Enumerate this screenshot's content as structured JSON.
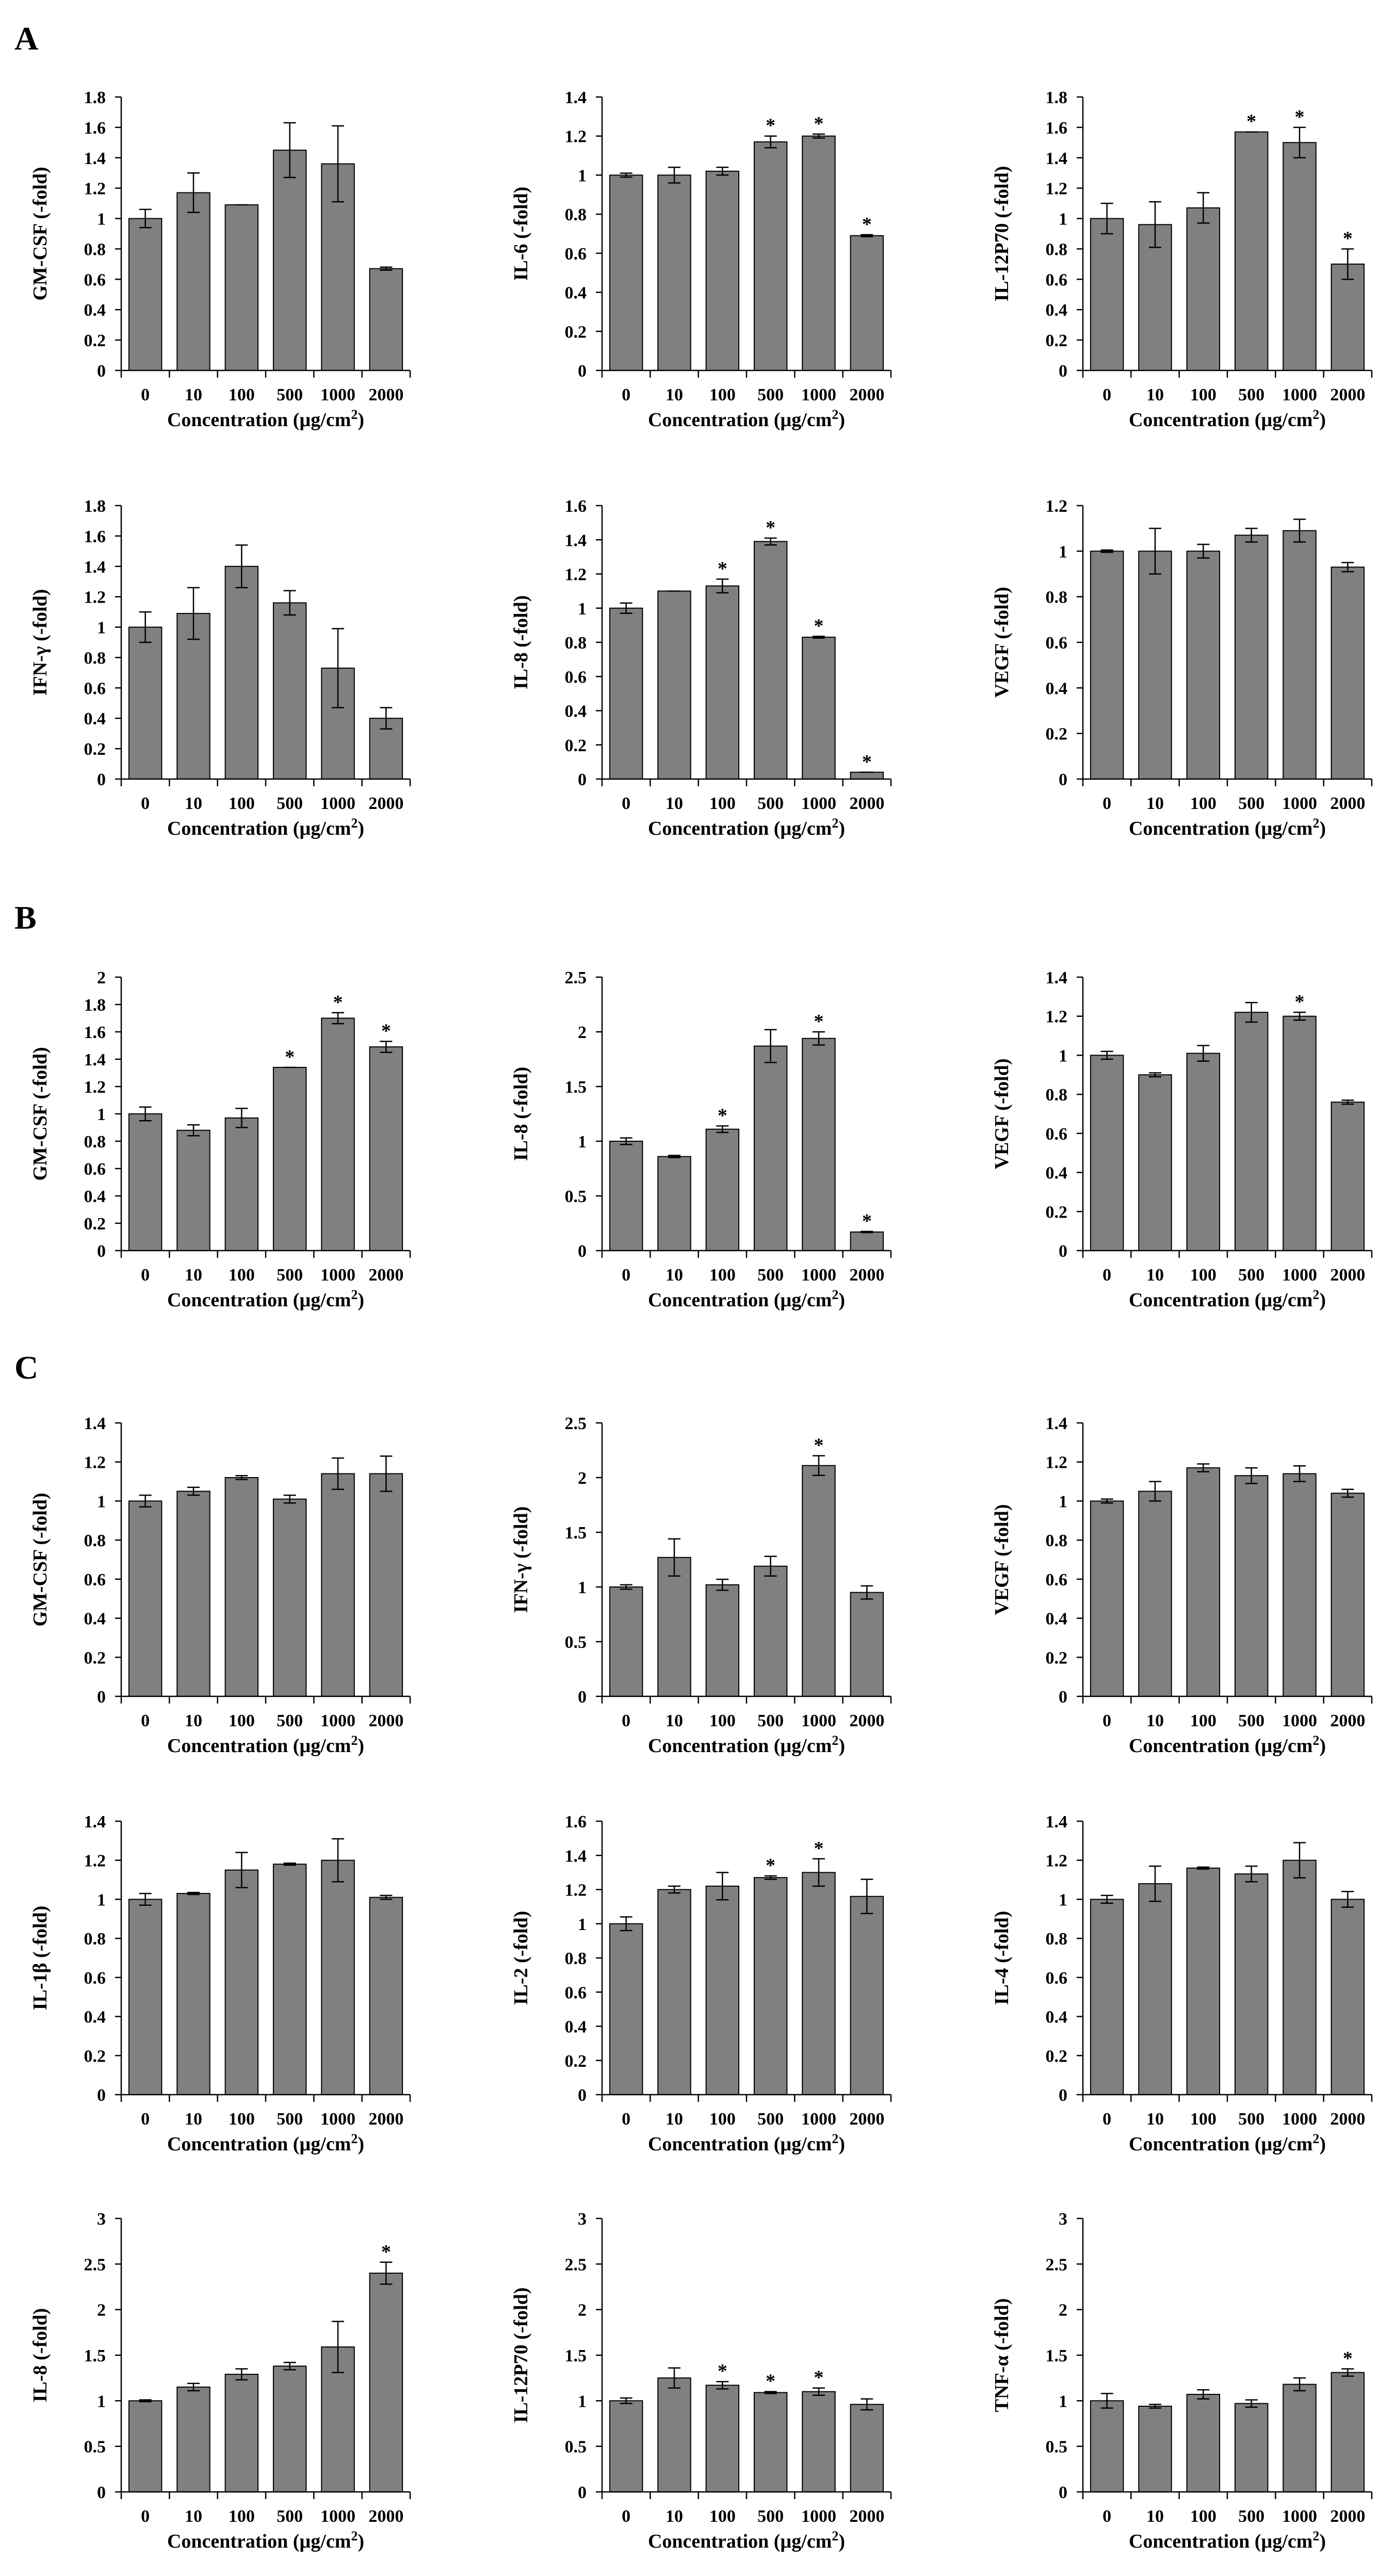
{
  "panels": [
    {
      "letter": "A"
    },
    {
      "letter": "B"
    },
    {
      "letter": "C"
    }
  ],
  "xlabel_text": "Concentration (µg/cm",
  "xlabel_sup": "2",
  "xlabel_close": ")",
  "chart_data": [
    {
      "type": "bar",
      "panel": "A",
      "ylabel": "GM-CSF (-fold)",
      "categories": [
        "0",
        "10",
        "100",
        "500",
        "1000",
        "2000"
      ],
      "ylim": [
        0,
        1.8
      ],
      "step": 0.2,
      "values": [
        1.0,
        1.17,
        1.09,
        1.45,
        1.36,
        0.67
      ],
      "errors": [
        0.06,
        0.13,
        0,
        0.18,
        0.25,
        0.01
      ],
      "significant": [
        false,
        false,
        false,
        false,
        false,
        false
      ]
    },
    {
      "type": "bar",
      "panel": "A",
      "ylabel": "IL-6 (-fold)",
      "categories": [
        "0",
        "10",
        "100",
        "500",
        "1000",
        "2000"
      ],
      "ylim": [
        0,
        1.4
      ],
      "step": 0.2,
      "values": [
        1.0,
        1.0,
        1.02,
        1.17,
        1.2,
        0.69
      ],
      "errors": [
        0.01,
        0.04,
        0.02,
        0.03,
        0.01,
        0.005
      ],
      "significant": [
        false,
        false,
        false,
        true,
        true,
        true
      ]
    },
    {
      "type": "bar",
      "panel": "A",
      "ylabel": "IL-12P70 (-fold)",
      "categories": [
        "0",
        "10",
        "100",
        "500",
        "1000",
        "2000"
      ],
      "ylim": [
        0,
        1.8
      ],
      "step": 0.2,
      "values": [
        1.0,
        0.96,
        1.07,
        1.57,
        1.5,
        0.7
      ],
      "errors": [
        0.1,
        0.15,
        0.1,
        0,
        0.1,
        0.1
      ],
      "significant": [
        false,
        false,
        false,
        true,
        true,
        true
      ]
    },
    {
      "type": "bar",
      "panel": "A",
      "ylabel": "IFN-γ (-fold)",
      "categories": [
        "0",
        "10",
        "100",
        "500",
        "1000",
        "2000"
      ],
      "ylim": [
        0,
        1.8
      ],
      "step": 0.2,
      "values": [
        1.0,
        1.09,
        1.4,
        1.16,
        0.73,
        0.4
      ],
      "errors": [
        0.1,
        0.17,
        0.14,
        0.08,
        0.26,
        0.07
      ],
      "significant": [
        false,
        false,
        false,
        false,
        false,
        false
      ]
    },
    {
      "type": "bar",
      "panel": "A",
      "ylabel": "IL-8 (-fold)",
      "categories": [
        "0",
        "10",
        "100",
        "500",
        "1000",
        "2000"
      ],
      "ylim": [
        0,
        1.6
      ],
      "step": 0.2,
      "values": [
        1.0,
        1.1,
        1.13,
        1.39,
        0.83,
        0.04
      ],
      "errors": [
        0.03,
        0,
        0.04,
        0.02,
        0.005,
        0.003
      ],
      "significant": [
        false,
        false,
        true,
        true,
        true,
        true
      ]
    },
    {
      "type": "bar",
      "panel": "A",
      "ylabel": "VEGF (-fold)",
      "categories": [
        "0",
        "10",
        "100",
        "500",
        "1000",
        "2000"
      ],
      "ylim": [
        0,
        1.2
      ],
      "step": 0.2,
      "values": [
        1.0,
        1.0,
        1.0,
        1.07,
        1.09,
        0.93
      ],
      "errors": [
        0.005,
        0.1,
        0.03,
        0.03,
        0.05,
        0.02
      ],
      "significant": [
        false,
        false,
        false,
        false,
        false,
        false
      ]
    },
    {
      "type": "bar",
      "panel": "B",
      "ylabel": "GM-CSF (-fold)",
      "categories": [
        "0",
        "10",
        "100",
        "500",
        "1000",
        "2000"
      ],
      "ylim": [
        0,
        2.0
      ],
      "step": 0.2,
      "values": [
        1.0,
        0.88,
        0.97,
        1.34,
        1.7,
        1.49
      ],
      "errors": [
        0.05,
        0.04,
        0.07,
        0,
        0.04,
        0.04
      ],
      "significant": [
        false,
        false,
        false,
        true,
        true,
        true
      ]
    },
    {
      "type": "bar",
      "panel": "B",
      "ylabel": "IL-8 (-fold)",
      "categories": [
        "0",
        "10",
        "100",
        "500",
        "1000",
        "2000"
      ],
      "ylim": [
        0,
        2.5
      ],
      "step": 0.5,
      "values": [
        1.0,
        0.86,
        1.11,
        1.87,
        1.94,
        0.17
      ],
      "errors": [
        0.03,
        0.01,
        0.03,
        0.15,
        0.06,
        0.005
      ],
      "significant": [
        false,
        false,
        true,
        false,
        true,
        true
      ]
    },
    {
      "type": "bar",
      "panel": "B",
      "ylabel": "VEGF (-fold)",
      "categories": [
        "0",
        "10",
        "100",
        "500",
        "1000",
        "2000"
      ],
      "ylim": [
        0,
        1.4
      ],
      "step": 0.2,
      "values": [
        1.0,
        0.9,
        1.01,
        1.22,
        1.2,
        0.76
      ],
      "errors": [
        0.02,
        0.01,
        0.04,
        0.05,
        0.02,
        0.01
      ],
      "significant": [
        false,
        false,
        false,
        false,
        true,
        false
      ]
    },
    {
      "type": "bar",
      "panel": "C",
      "ylabel": "GM-CSF (-fold)",
      "categories": [
        "0",
        "10",
        "100",
        "500",
        "1000",
        "2000"
      ],
      "ylim": [
        0,
        1.4
      ],
      "step": 0.2,
      "values": [
        1.0,
        1.05,
        1.12,
        1.01,
        1.14,
        1.14
      ],
      "errors": [
        0.03,
        0.02,
        0.01,
        0.02,
        0.08,
        0.09
      ],
      "significant": [
        false,
        false,
        false,
        false,
        false,
        false
      ]
    },
    {
      "type": "bar",
      "panel": "C",
      "ylabel": "IFN-γ (-fold)",
      "categories": [
        "0",
        "10",
        "100",
        "500",
        "1000",
        "2000"
      ],
      "ylim": [
        0,
        2.5
      ],
      "step": 0.5,
      "values": [
        1.0,
        1.27,
        1.02,
        1.19,
        2.11,
        0.95
      ],
      "errors": [
        0.02,
        0.17,
        0.05,
        0.09,
        0.09,
        0.06
      ],
      "significant": [
        false,
        false,
        false,
        false,
        true,
        false
      ]
    },
    {
      "type": "bar",
      "panel": "C",
      "ylabel": "VEGF (-fold)",
      "categories": [
        "0",
        "10",
        "100",
        "500",
        "1000",
        "2000"
      ],
      "ylim": [
        0,
        1.4
      ],
      "step": 0.2,
      "values": [
        1.0,
        1.05,
        1.17,
        1.13,
        1.14,
        1.04
      ],
      "errors": [
        0.01,
        0.05,
        0.02,
        0.04,
        0.04,
        0.02
      ],
      "significant": [
        false,
        false,
        false,
        false,
        false,
        false
      ]
    },
    {
      "type": "bar",
      "panel": "C",
      "ylabel": "IL-1β (-fold)",
      "categories": [
        "0",
        "10",
        "100",
        "500",
        "1000",
        "2000"
      ],
      "ylim": [
        0,
        1.4
      ],
      "step": 0.2,
      "values": [
        1.0,
        1.03,
        1.15,
        1.18,
        1.2,
        1.01
      ],
      "errors": [
        0.03,
        0.005,
        0.09,
        0.005,
        0.11,
        0.01
      ],
      "significant": [
        false,
        false,
        false,
        false,
        false,
        false
      ]
    },
    {
      "type": "bar",
      "panel": "C",
      "ylabel": "IL-2 (-fold)",
      "categories": [
        "0",
        "10",
        "100",
        "500",
        "1000",
        "2000"
      ],
      "ylim": [
        0,
        1.6
      ],
      "step": 0.2,
      "values": [
        1.0,
        1.2,
        1.22,
        1.27,
        1.3,
        1.16
      ],
      "errors": [
        0.04,
        0.02,
        0.08,
        0.01,
        0.08,
        0.1
      ],
      "significant": [
        false,
        false,
        false,
        true,
        true,
        false
      ]
    },
    {
      "type": "bar",
      "panel": "C",
      "ylabel": "IL-4 (-fold)",
      "categories": [
        "0",
        "10",
        "100",
        "500",
        "1000",
        "2000"
      ],
      "ylim": [
        0,
        1.4
      ],
      "step": 0.2,
      "values": [
        1.0,
        1.08,
        1.16,
        1.13,
        1.2,
        1.0
      ],
      "errors": [
        0.02,
        0.09,
        0.005,
        0.04,
        0.09,
        0.04
      ],
      "significant": [
        false,
        false,
        false,
        false,
        false,
        false
      ]
    },
    {
      "type": "bar",
      "panel": "C",
      "ylabel": "IL-8 (-fold)",
      "categories": [
        "0",
        "10",
        "100",
        "500",
        "1000",
        "2000"
      ],
      "ylim": [
        0,
        3.0
      ],
      "step": 0.5,
      "values": [
        1.0,
        1.15,
        1.29,
        1.38,
        1.59,
        2.4
      ],
      "errors": [
        0.01,
        0.04,
        0.06,
        0.04,
        0.28,
        0.12
      ],
      "significant": [
        false,
        false,
        false,
        false,
        false,
        true
      ]
    },
    {
      "type": "bar",
      "panel": "C",
      "ylabel": "IL-12P70 (-fold)",
      "categories": [
        "0",
        "10",
        "100",
        "500",
        "1000",
        "2000"
      ],
      "ylim": [
        0,
        3.0
      ],
      "step": 0.5,
      "values": [
        1.0,
        1.25,
        1.17,
        1.09,
        1.1,
        0.96
      ],
      "errors": [
        0.03,
        0.11,
        0.04,
        0.01,
        0.04,
        0.06
      ],
      "significant": [
        false,
        false,
        true,
        true,
        true,
        false
      ]
    },
    {
      "type": "bar",
      "panel": "C",
      "ylabel": "TNF-α (-fold)",
      "categories": [
        "0",
        "10",
        "100",
        "500",
        "1000",
        "2000"
      ],
      "ylim": [
        0,
        3.0
      ],
      "step": 0.5,
      "values": [
        1.0,
        0.94,
        1.07,
        0.97,
        1.18,
        1.31
      ],
      "errors": [
        0.08,
        0.02,
        0.05,
        0.04,
        0.07,
        0.04
      ],
      "significant": [
        false,
        false,
        false,
        false,
        false,
        true
      ]
    }
  ]
}
